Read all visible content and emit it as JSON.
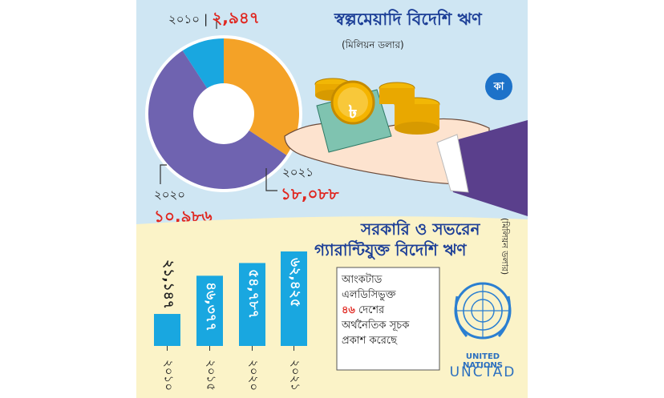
{
  "colors": {
    "top_bg": "#cfe6f3",
    "bottom_bg": "#fbf3c8",
    "purple": "#6f63b0",
    "orange": "#f4a227",
    "blue": "#19a7e0",
    "title": "#1d3f97",
    "red": "#e0261f"
  },
  "top": {
    "title": "স্বল্পমেয়াদি বিদেশি ঋণ",
    "unit": "(মিলিয়ন ডলার)",
    "year_2010": "২০১০",
    "value_2010": "২,৯৪৭",
    "year_2020": "২০২০",
    "value_2020": "১০,৯৮৬",
    "year_2021": "২০২১",
    "value_2021": "১৮,০৮৮",
    "logo_letter": "কা",
    "coin_symbol": "৳",
    "icons": [
      "hand-icon",
      "coin-stack-icon",
      "taka-coin-icon",
      "logo-icon"
    ]
  },
  "bottom": {
    "title_line1": "সরকারি ও সভরেন",
    "title_line2": "গ্যারান্টিযুক্ত বিদেশি ঋণ",
    "unit": "(মিলিয়ন ডলার)",
    "note_line1": "আংকটাড",
    "note_line2": "এলডিসিভুক্ত",
    "note_count": "৪৬",
    "note_line3_rest": " দেশের",
    "note_line4": "অর্থনৈতিক সূচক",
    "note_line5": "প্রকাশ করেছে",
    "un_label": "UNITED NATIONS",
    "unctad_label": "UNCTAD",
    "icons": [
      "un-emblem-icon"
    ]
  },
  "chart_data": [
    {
      "type": "pie",
      "title": "স্বল্পমেয়াদি বিদেশি ঋণ",
      "subtitle": "(মিলিয়ন ডলার)",
      "style": "donut",
      "labels": [
        "২০১০",
        "২০২০",
        "২০২১"
      ],
      "values": [
        2947,
        10986,
        18088
      ],
      "value_labels": [
        "২,৯৪৭",
        "১০,৯৮৬",
        "১৮,০৮৮"
      ],
      "colors": [
        "#19a7e0",
        "#f4a227",
        "#6f63b0"
      ]
    },
    {
      "type": "bar",
      "title": "সরকারি ও সভরেন গ্যারান্টিযুক্ত বিদেশি ঋণ",
      "subtitle": "(মিলিয়ন ডলার)",
      "categories": [
        "২০১০",
        "২০১৫",
        "২০২০",
        "২০২১"
      ],
      "values": [
        21147,
        46377,
        54787,
        62425
      ],
      "value_labels": [
        "২১,১৪৭",
        "৪৬,৩৭৭",
        "৫৪,৭৮৭",
        "৬২,৪২৫"
      ],
      "color": "#19a7e0",
      "ylim": [
        0,
        70000
      ],
      "grid": false
    }
  ]
}
